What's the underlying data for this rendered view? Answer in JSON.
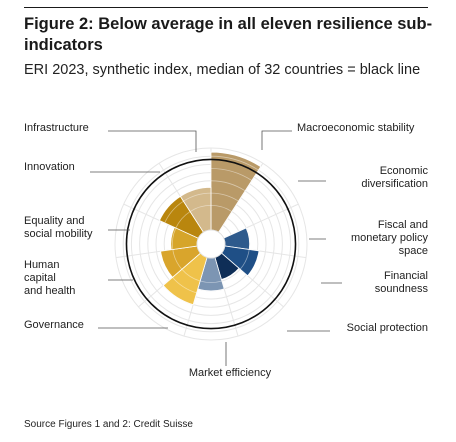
{
  "header": {
    "title": "Figure 2: Below average in all eleven resilience sub-indicators",
    "subtitle": "ERI 2023, synthetic index, median of 32 countries = black line"
  },
  "footer": {
    "source": "Source Figures 1 and 2: Credit Suisse"
  },
  "chart_data": {
    "type": "polar-area",
    "title": "Figure 2: Below average in all eleven resilience sub-indicators",
    "subtitle": "ERI 2023, synthetic index, median of 32 countries = black line",
    "reference_line": "median of 32 countries",
    "rings": 10,
    "categories": [
      {
        "name": "Infrastructure",
        "label_lines": [
          "Infrastructure"
        ],
        "value": 0.95,
        "color": "#b99a68"
      },
      {
        "name": "Macroeconomic stability",
        "label_lines": [
          "Macroeconomic stability"
        ],
        "value": 0.0,
        "color": "#1f3f6e"
      },
      {
        "name": "Economic diversification",
        "label_lines": [
          "Economic",
          "diversification"
        ],
        "value": 0.3,
        "color": "#2e5a8c"
      },
      {
        "name": "Fiscal and monetary policy space",
        "label_lines": [
          "Fiscal and",
          "monetary policy",
          "space"
        ],
        "value": 0.42,
        "color": "#1f4f86"
      },
      {
        "name": "Financial soundness",
        "label_lines": [
          "Financial",
          "soundness"
        ],
        "value": 0.28,
        "color": "#0f2e57"
      },
      {
        "name": "Social protection",
        "label_lines": [
          "Social protection"
        ],
        "value": 0.4,
        "color": "#7c95b3"
      },
      {
        "name": "Market efficiency",
        "label_lines": [
          "Market efficiency"
        ],
        "value": 0.6,
        "color": "#efc24a"
      },
      {
        "name": "Governance",
        "label_lines": [
          "Governance"
        ],
        "value": 0.45,
        "color": "#d9a52c"
      },
      {
        "name": "Human capital and health",
        "label_lines": [
          "Human",
          "capital",
          "and health"
        ],
        "value": 0.32,
        "color": "#d6a52a"
      },
      {
        "name": "Equality and social mobility",
        "label_lines": [
          "Equality and",
          "social mobility"
        ],
        "value": 0.52,
        "color": "#b9860e"
      },
      {
        "name": "Innovation",
        "label_lines": [
          "Innovation"
        ],
        "value": 0.52,
        "color": "#d3b98c"
      }
    ],
    "median_ratio": 0.86
  }
}
